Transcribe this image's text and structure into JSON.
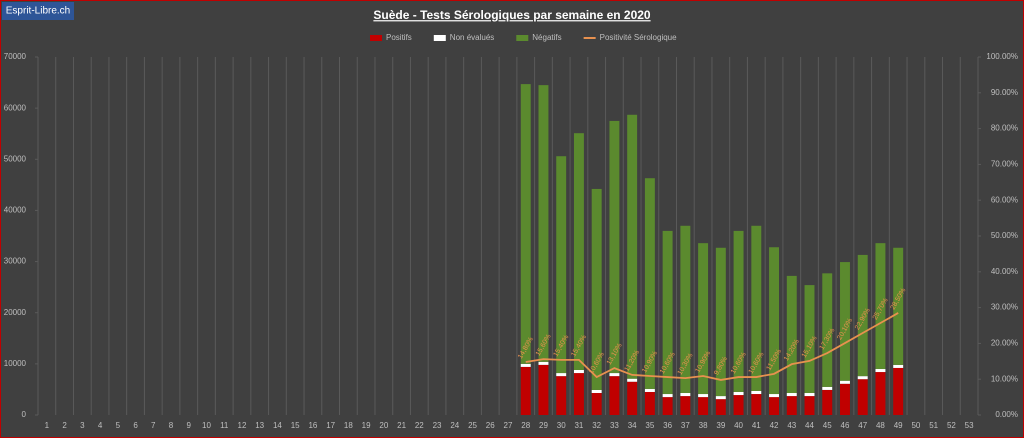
{
  "watermark": "Esprit-Libre.ch",
  "chart_data": {
    "type": "bar",
    "stacked": true,
    "title": "Suède - Tests Sérologiques par semaine en 2020",
    "categories": [
      "1",
      "2",
      "3",
      "4",
      "5",
      "6",
      "7",
      "8",
      "9",
      "10",
      "11",
      "12",
      "13",
      "14",
      "15",
      "16",
      "17",
      "18",
      "19",
      "20",
      "21",
      "22",
      "23",
      "24",
      "25",
      "26",
      "27",
      "28",
      "29",
      "30",
      "31",
      "32",
      "33",
      "34",
      "35",
      "36",
      "37",
      "38",
      "39",
      "40",
      "41",
      "42",
      "43",
      "44",
      "45",
      "46",
      "47",
      "48",
      "49",
      "50",
      "51",
      "52",
      "53"
    ],
    "series": [
      {
        "name": "Positifs",
        "color": "#c00000",
        "values": [
          null,
          null,
          null,
          null,
          null,
          null,
          null,
          null,
          null,
          null,
          null,
          null,
          null,
          null,
          null,
          null,
          null,
          null,
          null,
          null,
          null,
          null,
          null,
          null,
          null,
          null,
          null,
          9400,
          9800,
          7600,
          8200,
          4300,
          7600,
          6500,
          4500,
          3500,
          3700,
          3500,
          3100,
          3900,
          4100,
          3500,
          3700,
          3700,
          4900,
          6100,
          7000,
          8400,
          9200,
          null,
          null,
          null,
          null
        ]
      },
      {
        "name": "Non évalués",
        "color": "#ffffff",
        "values": [
          null,
          null,
          null,
          null,
          null,
          null,
          null,
          null,
          null,
          null,
          null,
          null,
          null,
          null,
          null,
          null,
          null,
          null,
          null,
          null,
          null,
          null,
          null,
          null,
          null,
          null,
          null,
          600,
          600,
          600,
          600,
          600,
          600,
          600,
          600,
          600,
          600,
          600,
          600,
          600,
          600,
          600,
          600,
          600,
          600,
          600,
          600,
          600,
          600,
          null,
          null,
          null,
          null
        ]
      },
      {
        "name": "Négatifs",
        "color": "#5b8a2e",
        "values": [
          null,
          null,
          null,
          null,
          null,
          null,
          null,
          null,
          null,
          null,
          null,
          null,
          null,
          null,
          null,
          null,
          null,
          null,
          null,
          null,
          null,
          null,
          null,
          null,
          null,
          null,
          null,
          54700,
          54100,
          42400,
          46300,
          39300,
          49300,
          51600,
          41200,
          31900,
          32700,
          29500,
          29000,
          31500,
          32300,
          28700,
          22900,
          21100,
          22200,
          23200,
          23700,
          24600,
          22900,
          null,
          null,
          null,
          null
        ]
      },
      {
        "name": "Positivité Sérologique",
        "color": "#e8914f",
        "axis": "y2",
        "values": [
          null,
          null,
          null,
          null,
          null,
          null,
          null,
          null,
          null,
          null,
          null,
          null,
          null,
          null,
          null,
          null,
          null,
          null,
          null,
          null,
          null,
          null,
          null,
          null,
          null,
          null,
          null,
          14.8,
          15.6,
          15.4,
          15.4,
          10.6,
          13.1,
          11.2,
          10.9,
          10.6,
          10.3,
          10.9,
          9.8,
          10.6,
          10.6,
          11.5,
          14.2,
          15.1,
          17.3,
          20.1,
          22.9,
          25.7,
          28.5,
          null,
          null,
          null,
          null
        ],
        "value_labels": [
          null,
          null,
          null,
          null,
          null,
          null,
          null,
          null,
          null,
          null,
          null,
          null,
          null,
          null,
          null,
          null,
          null,
          null,
          null,
          null,
          null,
          null,
          null,
          null,
          null,
          null,
          null,
          "14,80%",
          "15,60%",
          "15,40%",
          "15,40%",
          "10,60%",
          "13,10%",
          "11,20%",
          "10,90%",
          "10,60%",
          "10,30%",
          "10,90%",
          "9,80%",
          "10,60%",
          "10,60%",
          "11,50%",
          "14,20%",
          "15,10%",
          "17,30%",
          "20,10%",
          "22,90%",
          "25,70%",
          "28,50%",
          null,
          null,
          null,
          null
        ]
      }
    ],
    "ylim": [
      0,
      70000
    ],
    "yticks": [
      0,
      10000,
      20000,
      30000,
      40000,
      50000,
      60000,
      70000
    ],
    "y2lim": [
      0,
      100
    ],
    "y2ticks": [
      {
        "value": 0,
        "label": "0.00%"
      },
      {
        "value": 10,
        "label": "10.00%"
      },
      {
        "value": 20,
        "label": "20.00%"
      },
      {
        "value": 30,
        "label": "30.00%"
      },
      {
        "value": 40,
        "label": "40.00%"
      },
      {
        "value": 50,
        "label": "50.00%"
      },
      {
        "value": 60,
        "label": "60.00%"
      },
      {
        "value": 70,
        "label": "70.00%"
      },
      {
        "value": 80,
        "label": "80.00%"
      },
      {
        "value": 90,
        "label": "90.00%"
      },
      {
        "value": 100,
        "label": "100.00%"
      }
    ],
    "grid": true,
    "legend": "top"
  }
}
